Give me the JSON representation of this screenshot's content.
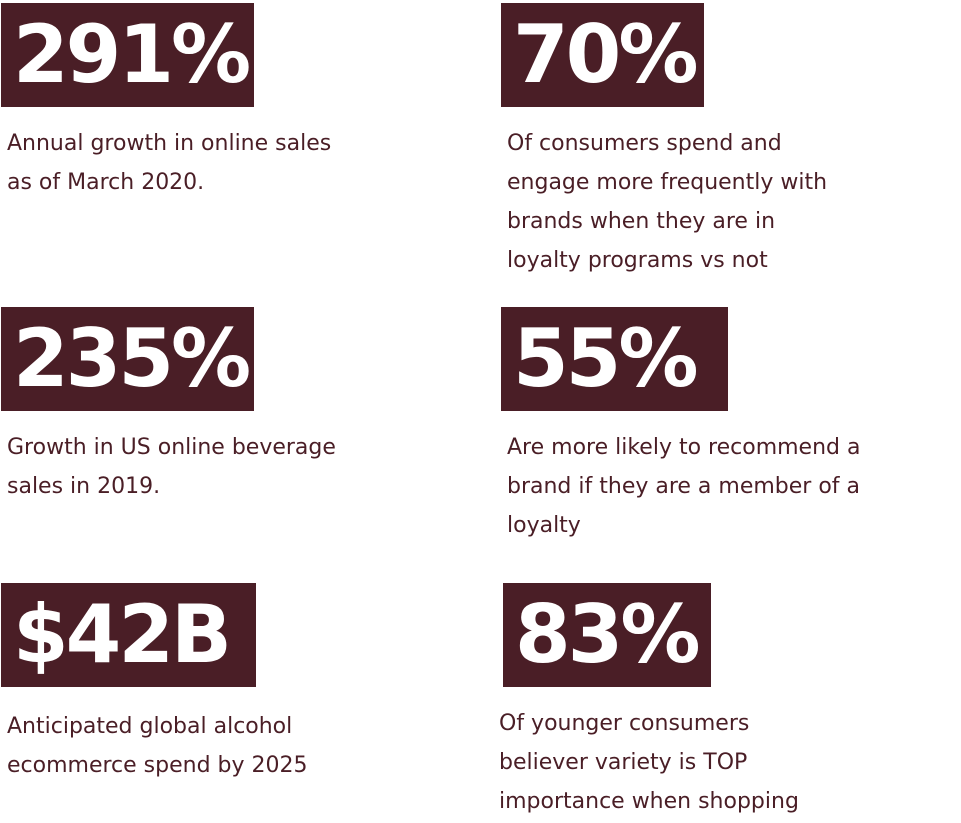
{
  "stats": [
    {
      "value": "291%",
      "description": "Annual growth in online sales\nas of March 2020."
    },
    {
      "value": "70%",
      "description": "Of consumers spend and\nengage more frequently with\nbrands when they are in\nloyalty programs vs not"
    },
    {
      "value": "235%",
      "description": "Growth in US online beverage\nsales in 2019."
    },
    {
      "value": "55%",
      "description": "Are more likely to recommend a\nbrand if they are a member of a\nloyalty"
    },
    {
      "value": "$42B",
      "description": "Anticipated global alcohol\necommerce spend by 2025"
    },
    {
      "value": "83%",
      "description": "Of younger consumers\nbeliever variety is TOP\nimportance when shopping"
    }
  ],
  "colors": {
    "accent": "#4a1e26",
    "background": "#ffffff",
    "value_text": "#ffffff"
  }
}
